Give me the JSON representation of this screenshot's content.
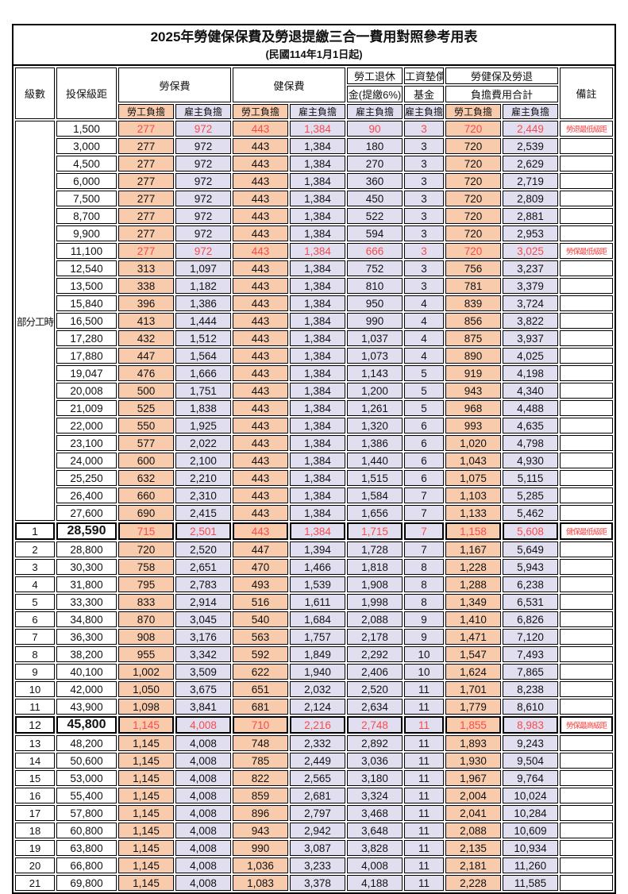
{
  "title": "2025年勞健保保費及勞退提繳三合一費用對照參考用表",
  "subtitle": "(民國114年1月1日起)",
  "header": {
    "level": "級數",
    "salary": "投保級距",
    "labor_ins": "勞保費",
    "health_ins": "健保費",
    "pension_line1": "勞工退休",
    "pension_line2": "金(提繳6%)",
    "wage_fund_line1": "工資墊償",
    "wage_fund_line2": "基金",
    "total_line1": "勞健保及勞退",
    "total_line2": "負擔費用合計",
    "remark": "備註",
    "employee": "勞工負擔",
    "employer": "雇主負擔"
  },
  "part_time_label": "部分工時",
  "colors": {
    "employee_bg": "#F8CBAD",
    "employer_bg": "#E1DEF0",
    "highlight_red": "#FB4A4A",
    "border": "#000000"
  },
  "rows": [
    {
      "level": "",
      "salary": "1,500",
      "values": [
        "277",
        "972",
        "443",
        "1,384",
        "90",
        "3",
        "720",
        "2,449"
      ],
      "note": "勞退最低級距",
      "red": true
    },
    {
      "level": "",
      "salary": "3,000",
      "values": [
        "277",
        "972",
        "443",
        "1,384",
        "180",
        "3",
        "720",
        "2,539"
      ],
      "note": ""
    },
    {
      "level": "",
      "salary": "4,500",
      "values": [
        "277",
        "972",
        "443",
        "1,384",
        "270",
        "3",
        "720",
        "2,629"
      ],
      "note": ""
    },
    {
      "level": "",
      "salary": "6,000",
      "values": [
        "277",
        "972",
        "443",
        "1,384",
        "360",
        "3",
        "720",
        "2,719"
      ],
      "note": ""
    },
    {
      "level": "",
      "salary": "7,500",
      "values": [
        "277",
        "972",
        "443",
        "1,384",
        "450",
        "3",
        "720",
        "2,809"
      ],
      "note": ""
    },
    {
      "level": "",
      "salary": "8,700",
      "values": [
        "277",
        "972",
        "443",
        "1,384",
        "522",
        "3",
        "720",
        "2,881"
      ],
      "note": ""
    },
    {
      "level": "",
      "salary": "9,900",
      "values": [
        "277",
        "972",
        "443",
        "1,384",
        "594",
        "3",
        "720",
        "2,953"
      ],
      "note": ""
    },
    {
      "level": "",
      "salary": "11,100",
      "values": [
        "277",
        "972",
        "443",
        "1,384",
        "666",
        "3",
        "720",
        "3,025"
      ],
      "note": "勞保最低級距",
      "red": true
    },
    {
      "level": "",
      "salary": "12,540",
      "values": [
        "313",
        "1,097",
        "443",
        "1,384",
        "752",
        "3",
        "756",
        "3,237"
      ],
      "note": ""
    },
    {
      "level": "",
      "salary": "13,500",
      "values": [
        "338",
        "1,182",
        "443",
        "1,384",
        "810",
        "3",
        "781",
        "3,379"
      ],
      "note": ""
    },
    {
      "level": "",
      "salary": "15,840",
      "values": [
        "396",
        "1,386",
        "443",
        "1,384",
        "950",
        "4",
        "839",
        "3,724"
      ],
      "note": ""
    },
    {
      "level": "",
      "salary": "16,500",
      "values": [
        "413",
        "1,444",
        "443",
        "1,384",
        "990",
        "4",
        "856",
        "3,822"
      ],
      "note": ""
    },
    {
      "level": "",
      "salary": "17,280",
      "values": [
        "432",
        "1,512",
        "443",
        "1,384",
        "1,037",
        "4",
        "875",
        "3,937"
      ],
      "note": ""
    },
    {
      "level": "",
      "salary": "17,880",
      "values": [
        "447",
        "1,564",
        "443",
        "1,384",
        "1,073",
        "4",
        "890",
        "4,025"
      ],
      "note": ""
    },
    {
      "level": "",
      "salary": "19,047",
      "values": [
        "476",
        "1,666",
        "443",
        "1,384",
        "1,143",
        "5",
        "919",
        "4,198"
      ],
      "note": ""
    },
    {
      "level": "",
      "salary": "20,008",
      "values": [
        "500",
        "1,751",
        "443",
        "1,384",
        "1,200",
        "5",
        "943",
        "4,340"
      ],
      "note": ""
    },
    {
      "level": "",
      "salary": "21,009",
      "values": [
        "525",
        "1,838",
        "443",
        "1,384",
        "1,261",
        "5",
        "968",
        "4,488"
      ],
      "note": ""
    },
    {
      "level": "",
      "salary": "22,000",
      "values": [
        "550",
        "1,925",
        "443",
        "1,384",
        "1,320",
        "6",
        "993",
        "4,635"
      ],
      "note": ""
    },
    {
      "level": "",
      "salary": "23,100",
      "values": [
        "577",
        "2,022",
        "443",
        "1,384",
        "1,386",
        "6",
        "1,020",
        "4,798"
      ],
      "note": ""
    },
    {
      "level": "",
      "salary": "24,000",
      "values": [
        "600",
        "2,100",
        "443",
        "1,384",
        "1,440",
        "6",
        "1,043",
        "4,930"
      ],
      "note": ""
    },
    {
      "level": "",
      "salary": "25,250",
      "values": [
        "632",
        "2,210",
        "443",
        "1,384",
        "1,515",
        "6",
        "1,075",
        "5,115"
      ],
      "note": ""
    },
    {
      "level": "",
      "salary": "26,400",
      "values": [
        "660",
        "2,310",
        "443",
        "1,384",
        "1,584",
        "7",
        "1,103",
        "5,285"
      ],
      "note": ""
    },
    {
      "level": "",
      "salary": "27,600",
      "values": [
        "690",
        "2,415",
        "443",
        "1,384",
        "1,656",
        "7",
        "1,133",
        "5,462"
      ],
      "note": ""
    },
    {
      "level": "1",
      "salary": "28,590",
      "values": [
        "715",
        "2,501",
        "443",
        "1,384",
        "1,715",
        "7",
        "1,158",
        "5,608"
      ],
      "note": "健保最低級距",
      "red": true,
      "thick": true,
      "big": true
    },
    {
      "level": "2",
      "salary": "28,800",
      "values": [
        "720",
        "2,520",
        "447",
        "1,394",
        "1,728",
        "7",
        "1,167",
        "5,649"
      ],
      "note": ""
    },
    {
      "level": "3",
      "salary": "30,300",
      "values": [
        "758",
        "2,651",
        "470",
        "1,466",
        "1,818",
        "8",
        "1,228",
        "5,943"
      ],
      "note": ""
    },
    {
      "level": "4",
      "salary": "31,800",
      "values": [
        "795",
        "2,783",
        "493",
        "1,539",
        "1,908",
        "8",
        "1,288",
        "6,238"
      ],
      "note": ""
    },
    {
      "level": "5",
      "salary": "33,300",
      "values": [
        "833",
        "2,914",
        "516",
        "1,611",
        "1,998",
        "8",
        "1,349",
        "6,531"
      ],
      "note": ""
    },
    {
      "level": "6",
      "salary": "34,800",
      "values": [
        "870",
        "3,045",
        "540",
        "1,684",
        "2,088",
        "9",
        "1,410",
        "6,826"
      ],
      "note": ""
    },
    {
      "level": "7",
      "salary": "36,300",
      "values": [
        "908",
        "3,176",
        "563",
        "1,757",
        "2,178",
        "9",
        "1,471",
        "7,120"
      ],
      "note": ""
    },
    {
      "level": "8",
      "salary": "38,200",
      "values": [
        "955",
        "3,342",
        "592",
        "1,849",
        "2,292",
        "10",
        "1,547",
        "7,493"
      ],
      "note": ""
    },
    {
      "level": "9",
      "salary": "40,100",
      "values": [
        "1,002",
        "3,509",
        "622",
        "1,940",
        "2,406",
        "10",
        "1,624",
        "7,865"
      ],
      "note": ""
    },
    {
      "level": "10",
      "salary": "42,000",
      "values": [
        "1,050",
        "3,675",
        "651",
        "2,032",
        "2,520",
        "11",
        "1,701",
        "8,238"
      ],
      "note": ""
    },
    {
      "level": "11",
      "salary": "43,900",
      "values": [
        "1,098",
        "3,841",
        "681",
        "2,124",
        "2,634",
        "11",
        "1,779",
        "8,610"
      ],
      "note": ""
    },
    {
      "level": "12",
      "salary": "45,800",
      "values": [
        "1,145",
        "4,008",
        "710",
        "2,216",
        "2,748",
        "11",
        "1,855",
        "8,983"
      ],
      "note": "勞保最高級距",
      "red": true,
      "thick": true,
      "big": true
    },
    {
      "level": "13",
      "salary": "48,200",
      "values": [
        "1,145",
        "4,008",
        "748",
        "2,332",
        "2,892",
        "11",
        "1,893",
        "9,243"
      ],
      "note": ""
    },
    {
      "level": "14",
      "salary": "50,600",
      "values": [
        "1,145",
        "4,008",
        "785",
        "2,449",
        "3,036",
        "11",
        "1,930",
        "9,504"
      ],
      "note": ""
    },
    {
      "level": "15",
      "salary": "53,000",
      "values": [
        "1,145",
        "4,008",
        "822",
        "2,565",
        "3,180",
        "11",
        "1,967",
        "9,764"
      ],
      "note": ""
    },
    {
      "level": "16",
      "salary": "55,400",
      "values": [
        "1,145",
        "4,008",
        "859",
        "2,681",
        "3,324",
        "11",
        "2,004",
        "10,024"
      ],
      "note": ""
    },
    {
      "level": "17",
      "salary": "57,800",
      "values": [
        "1,145",
        "4,008",
        "896",
        "2,797",
        "3,468",
        "11",
        "2,041",
        "10,284"
      ],
      "note": ""
    },
    {
      "level": "18",
      "salary": "60,800",
      "values": [
        "1,145",
        "4,008",
        "943",
        "2,942",
        "3,648",
        "11",
        "2,088",
        "10,609"
      ],
      "note": ""
    },
    {
      "level": "19",
      "salary": "63,800",
      "values": [
        "1,145",
        "4,008",
        "990",
        "3,087",
        "3,828",
        "11",
        "2,135",
        "10,934"
      ],
      "note": ""
    },
    {
      "level": "20",
      "salary": "66,800",
      "values": [
        "1,145",
        "4,008",
        "1,036",
        "3,233",
        "4,008",
        "11",
        "2,181",
        "11,260"
      ],
      "note": ""
    },
    {
      "level": "21",
      "salary": "69,800",
      "values": [
        "1,145",
        "4,008",
        "1,083",
        "3,378",
        "4,188",
        "11",
        "2,228",
        "11,585"
      ],
      "note": ""
    }
  ]
}
